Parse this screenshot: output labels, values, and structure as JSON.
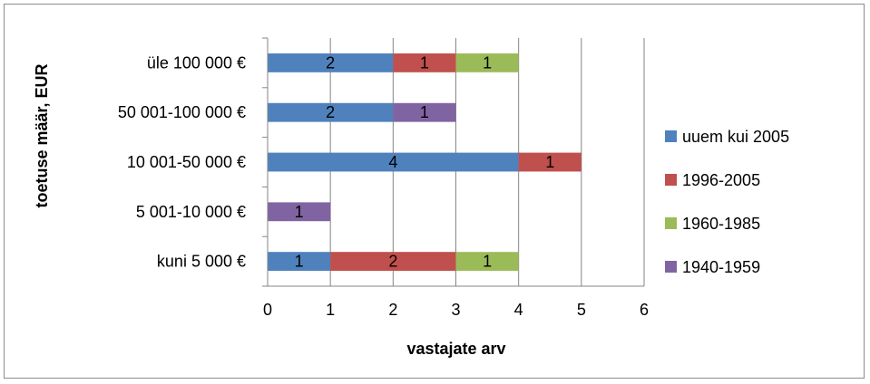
{
  "chart_data": {
    "type": "bar",
    "orientation": "horizontal",
    "stacked": true,
    "categories": [
      "kuni 5 000 €",
      "5 001-10 000 €",
      "10 001-50 000 €",
      "50 001-100 000 €",
      "üle 100 000 €"
    ],
    "series": [
      {
        "name": "uuem kui 2005",
        "color": "#4f81bd",
        "values": [
          1,
          0,
          4,
          2,
          2
        ]
      },
      {
        "name": "1996-2005",
        "color": "#c0504d",
        "values": [
          2,
          0,
          1,
          0,
          1
        ]
      },
      {
        "name": "1960-1985",
        "color": "#9bbb59",
        "values": [
          1,
          0,
          0,
          0,
          1
        ]
      },
      {
        "name": "1940-1959",
        "color": "#8064a2",
        "values": [
          0,
          1,
          0,
          1,
          0
        ]
      }
    ],
    "xlabel": "vastajate arv",
    "ylabel": "toetuse määr, EUR",
    "xlim": [
      0,
      6
    ],
    "xticks": [
      "0",
      "1",
      "2",
      "3",
      "4",
      "5",
      "6"
    ],
    "grid": "vertical",
    "legend": "right",
    "data_labels": true
  }
}
